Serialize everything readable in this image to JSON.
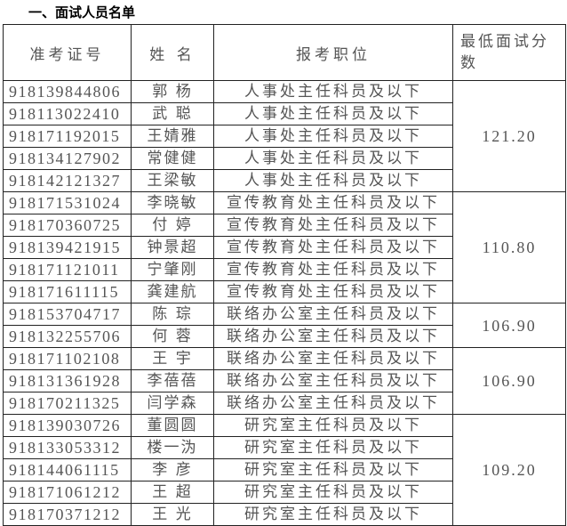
{
  "title": "一、面试人员名单",
  "headers": {
    "id": "准考证号",
    "name": "姓 名",
    "position": "报考职位",
    "score": "最低面试分数"
  },
  "rows": [
    {
      "id": "918139844806",
      "name": "郭 杨",
      "position": "人事处主任科员及以下"
    },
    {
      "id": "918113022410",
      "name": "武 聪",
      "position": "人事处主任科员及以下"
    },
    {
      "id": "918171192015",
      "name": "王婧雅",
      "position": "人事处主任科员及以下"
    },
    {
      "id": "918134127902",
      "name": "常健健",
      "position": "人事处主任科员及以下"
    },
    {
      "id": "918142121327",
      "name": "王梁敏",
      "position": "人事处主任科员及以下"
    },
    {
      "id": "918171531024",
      "name": "李晓敏",
      "position": "宣传教育处主任科员及以下"
    },
    {
      "id": "918170360725",
      "name": "付 婷",
      "position": "宣传教育处主任科员及以下"
    },
    {
      "id": "918139421915",
      "name": "钟景超",
      "position": "宣传教育处主任科员及以下"
    },
    {
      "id": "918171121011",
      "name": "宁肇刚",
      "position": "宣传教育处主任科员及以下"
    },
    {
      "id": "918171611115",
      "name": "龚建航",
      "position": "宣传教育处主任科员及以下"
    },
    {
      "id": "918153704717",
      "name": "陈 琮",
      "position": "联络办公室主任科员及以下"
    },
    {
      "id": "918132255706",
      "name": "何 蓉",
      "position": "联络办公室主任科员及以下"
    },
    {
      "id": "918171102108",
      "name": "王 宇",
      "position": "联络办公室主任科员及以下"
    },
    {
      "id": "918131361928",
      "name": "李蓓蓓",
      "position": "联络办公室主任科员及以下"
    },
    {
      "id": "918170211325",
      "name": "闫学森",
      "position": "联络办公室主任科员及以下"
    },
    {
      "id": "918139030726",
      "name": "董圆圆",
      "position": "研究室主任科员及以下"
    },
    {
      "id": "918133053312",
      "name": "楼一沩",
      "position": "研究室主任科员及以下"
    },
    {
      "id": "918144061115",
      "name": "李 彦",
      "position": "研究室主任科员及以下"
    },
    {
      "id": "918171061212",
      "name": "王 超",
      "position": "研究室主任科员及以下"
    },
    {
      "id": "918170371212",
      "name": "王 光",
      "position": "研究室主任科员及以下"
    }
  ],
  "score_groups": [
    {
      "start": 0,
      "span": 5,
      "score": "121.20"
    },
    {
      "start": 5,
      "span": 5,
      "score": "110.80"
    },
    {
      "start": 10,
      "span": 2,
      "score": "106.90"
    },
    {
      "start": 12,
      "span": 3,
      "score": "106.90"
    },
    {
      "start": 15,
      "span": 5,
      "score": "109.20"
    }
  ]
}
